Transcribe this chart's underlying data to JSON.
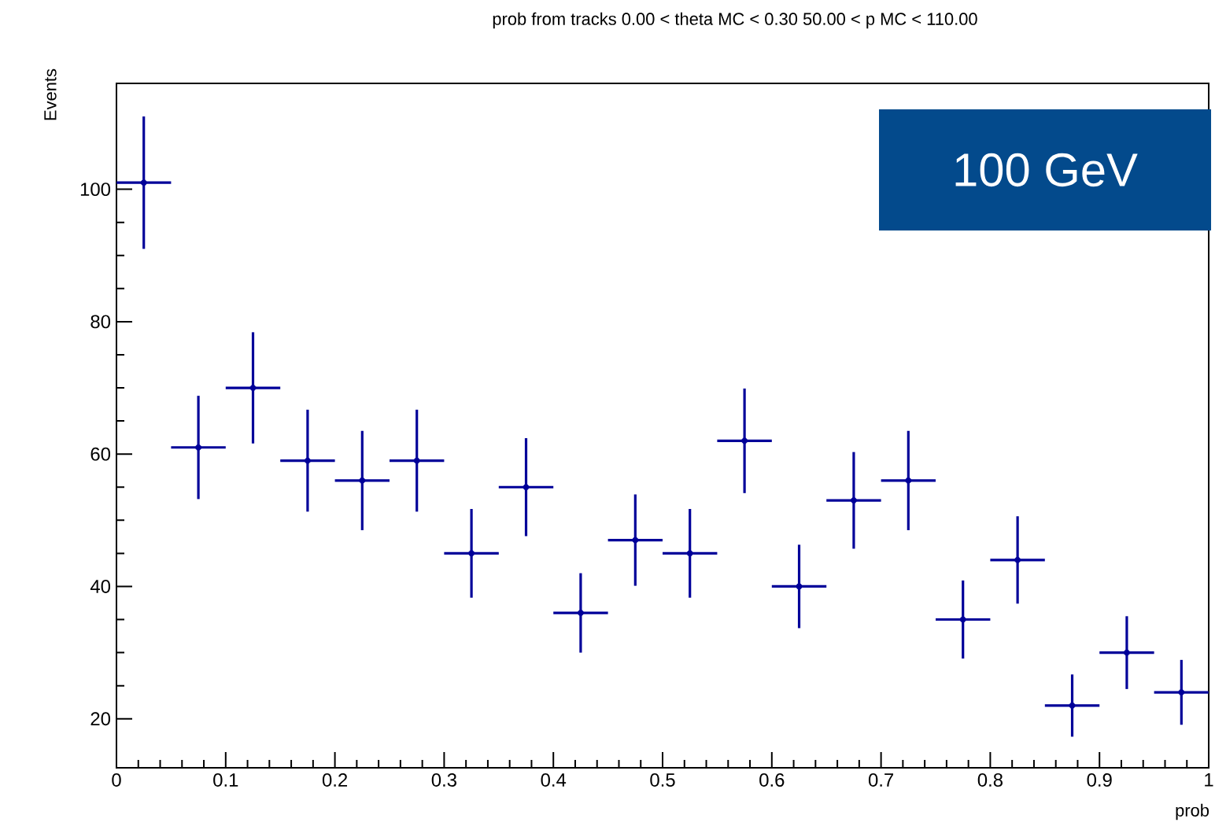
{
  "chart_data": {
    "type": "scatter",
    "title": "prob from tracks 0.00 < theta MC < 0.30 50.00 < p MC < 110.00",
    "xlabel": "prob",
    "ylabel": "Events",
    "annotations": [
      "100 GeV"
    ],
    "x": [
      0.025,
      0.075,
      0.125,
      0.175,
      0.225,
      0.275,
      0.325,
      0.375,
      0.425,
      0.475,
      0.525,
      0.575,
      0.625,
      0.675,
      0.725,
      0.775,
      0.825,
      0.875,
      0.925,
      0.975
    ],
    "series": [
      {
        "color": "#000099",
        "values": [
          101,
          61,
          70,
          59,
          56,
          59,
          45,
          55,
          36,
          47,
          45,
          62,
          40,
          53,
          56,
          35,
          44,
          22,
          30,
          24
        ],
        "errors": [
          10,
          7.8,
          8.4,
          7.7,
          7.5,
          7.7,
          6.7,
          7.4,
          6,
          6.9,
          6.7,
          7.9,
          6.3,
          7.3,
          7.5,
          5.9,
          6.6,
          4.7,
          5.5,
          4.9
        ],
        "xerrors": [
          0.025,
          0.025,
          0.025,
          0.025,
          0.025,
          0.025,
          0.025,
          0.025,
          0.025,
          0.025,
          0.025,
          0.025,
          0.025,
          0.025,
          0.025,
          0.025,
          0.025,
          0.025,
          0.025,
          0.025
        ]
      }
    ],
    "marker": "circle",
    "xlim": [
      0,
      1
    ],
    "xticks": [
      0,
      0.1,
      0.2,
      0.3,
      0.4,
      0.5,
      0.6,
      0.7,
      0.8,
      0.9,
      1
    ],
    "ylim": [
      12.6,
      116
    ],
    "yticks": [
      20,
      40,
      60,
      80,
      100
    ],
    "grid": false
  }
}
